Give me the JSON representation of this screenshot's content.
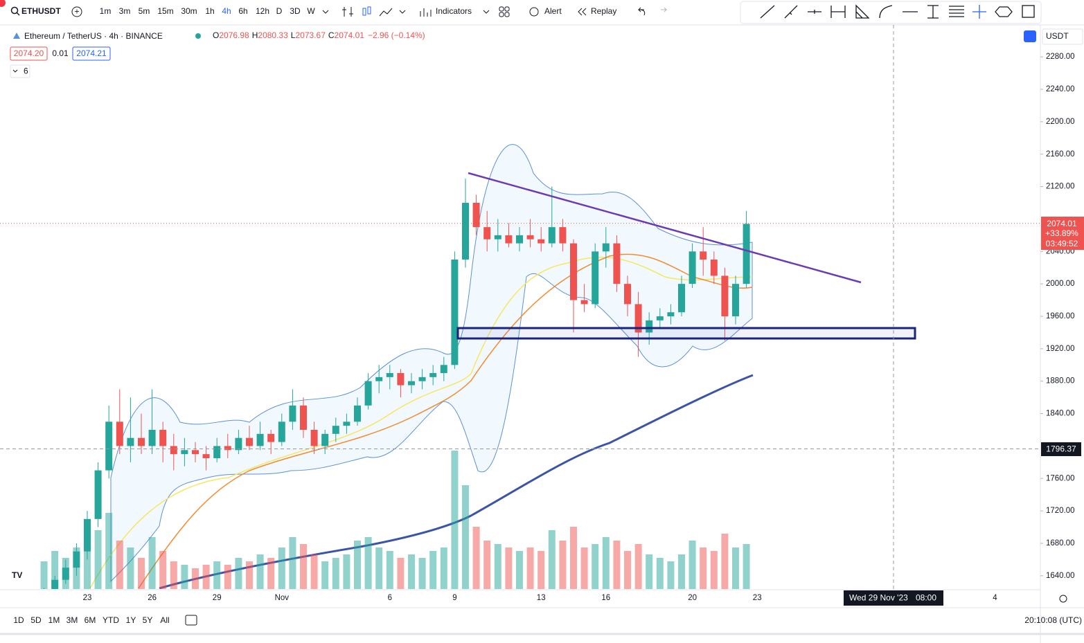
{
  "toolbar": {
    "symbol": "ETHUSDT",
    "intervals": [
      "1m",
      "3m",
      "5m",
      "15m",
      "30m",
      "1h",
      "4h",
      "6h",
      "12h",
      "D",
      "3D",
      "W"
    ],
    "indicators": "Indicators",
    "alert": "Alert",
    "replay": "Replay"
  },
  "legend": {
    "name": "Ethereum / TetherUS · 4h · BINANCE",
    "open_label": "O",
    "open": "2076.98",
    "high_label": "H",
    "high": "2080.33",
    "low_label": "L",
    "low": "2073.67",
    "close_label": "C",
    "close": "2074.01",
    "change": "−2.96 (−0.14%)",
    "bid": "2074.20",
    "spread": "0.01",
    "ask": "2074.21",
    "indicator_count": "6"
  },
  "price_axis": {
    "currency": "USDT",
    "last_price": "2074.01",
    "last_change": "+33.89%",
    "countdown": "03:49:52",
    "crosshair_price": "1796.37",
    "crosshair_date": "Wed 29 Nov '23",
    "crosshair_time": "08:00"
  },
  "chart_data": {
    "type": "candlestick",
    "categories": [
      null,
      null,
      null,
      null,
      "23",
      null,
      null,
      null,
      null,
      null,
      "26",
      null,
      null,
      null,
      null,
      null,
      "29",
      null,
      null,
      null,
      null,
      null,
      "Nov",
      null,
      null,
      null,
      null,
      null,
      null,
      null,
      null,
      null,
      "6",
      null,
      null,
      null,
      null,
      null,
      "9",
      null,
      null,
      null,
      null,
      null,
      null,
      null,
      "13",
      null,
      null,
      null,
      null,
      null,
      "16",
      null,
      null,
      null,
      null,
      null,
      null,
      null,
      "20",
      null,
      null,
      null,
      null,
      null,
      "23",
      null,
      null,
      null,
      null,
      null,
      null,
      null,
      null,
      null,
      null,
      null,
      null,
      null,
      null,
      null,
      null,
      null,
      null,
      null,
      null,
      null,
      "4"
    ],
    "open": [
      1610,
      1620,
      1635,
      1650,
      1670,
      1710,
      1770,
      1830,
      1800,
      1810,
      1800,
      1820,
      1800,
      1790,
      1795,
      1790,
      1785,
      1800,
      1795,
      1810,
      1800,
      1815,
      1805,
      1830,
      1850,
      1820,
      1800,
      1815,
      1825,
      1830,
      1850,
      1880,
      1885,
      1890,
      1875,
      1880,
      1885,
      1890,
      1900,
      2030,
      2100,
      2070,
      2055,
      2060,
      2050,
      2060,
      2055,
      2050,
      2070,
      2050,
      1980,
      1975,
      2040,
      2050,
      2000,
      1975,
      1940,
      1955,
      1960,
      1965,
      2000,
      2040,
      2030,
      2010,
      1960,
      2000,
      null,
      null,
      null,
      null,
      null,
      null,
      null,
      null,
      null,
      null,
      null,
      null,
      null,
      null,
      null,
      null,
      null,
      null,
      null,
      null,
      null,
      null,
      null
    ],
    "high": [
      1625,
      1640,
      1660,
      1680,
      1720,
      1780,
      1850,
      1870,
      1860,
      1840,
      1870,
      1830,
      1815,
      1810,
      1805,
      1800,
      1810,
      1815,
      1820,
      1825,
      1830,
      1820,
      1840,
      1870,
      1860,
      1830,
      1820,
      1835,
      1840,
      1860,
      1890,
      1900,
      1900,
      1895,
      1890,
      1895,
      1900,
      1910,
      2040,
      2130,
      2110,
      2090,
      2080,
      2075,
      2070,
      2080,
      2070,
      2120,
      2080,
      2055,
      2000,
      2050,
      2070,
      2060,
      2010,
      1990,
      1965,
      1970,
      1975,
      2010,
      2050,
      2070,
      2040,
      2020,
      2010,
      2090,
      null,
      null,
      null,
      null,
      null,
      null,
      null,
      null,
      null,
      null,
      null,
      null,
      null,
      null,
      null,
      null,
      null,
      null,
      null,
      null,
      null,
      null,
      null
    ],
    "low": [
      1600,
      1615,
      1630,
      1640,
      1660,
      1700,
      1760,
      1790,
      1780,
      1790,
      1790,
      1780,
      1770,
      1775,
      1780,
      1770,
      1780,
      1785,
      1790,
      1795,
      1795,
      1790,
      1800,
      1820,
      1810,
      1790,
      1790,
      1805,
      1815,
      1825,
      1845,
      1865,
      1870,
      1860,
      1865,
      1870,
      1875,
      1880,
      1895,
      2020,
      2060,
      2040,
      2040,
      2045,
      2040,
      2045,
      2040,
      2045,
      2040,
      1940,
      1965,
      1970,
      2020,
      1990,
      1960,
      1910,
      1925,
      1945,
      1950,
      1960,
      1995,
      2010,
      2000,
      1930,
      1950,
      1995,
      null,
      null,
      null,
      null,
      null,
      null,
      null,
      null,
      null,
      null,
      null,
      null,
      null,
      null,
      null,
      null,
      null,
      null,
      null,
      null,
      null,
      null,
      null
    ],
    "close": [
      1620,
      1635,
      1650,
      1670,
      1710,
      1770,
      1830,
      1800,
      1810,
      1800,
      1820,
      1800,
      1790,
      1795,
      1790,
      1785,
      1800,
      1795,
      1810,
      1800,
      1815,
      1805,
      1830,
      1850,
      1820,
      1800,
      1815,
      1825,
      1830,
      1850,
      1880,
      1885,
      1890,
      1875,
      1880,
      1885,
      1890,
      1900,
      2030,
      2100,
      2070,
      2055,
      2060,
      2050,
      2060,
      2055,
      2050,
      2070,
      2050,
      1980,
      1975,
      2040,
      2050,
      2000,
      1975,
      1940,
      1955,
      1960,
      1965,
      2000,
      2040,
      2030,
      2010,
      1960,
      2000,
      2074,
      null,
      null,
      null,
      null,
      null,
      null,
      null,
      null,
      null,
      null,
      null,
      null,
      null,
      null,
      null,
      null,
      null,
      null,
      null,
      null,
      null,
      null,
      null
    ],
    "volume": [
      40,
      55,
      45,
      60,
      90,
      85,
      110,
      70,
      60,
      45,
      75,
      55,
      40,
      35,
      30,
      35,
      40,
      35,
      45,
      40,
      50,
      45,
      60,
      75,
      65,
      50,
      40,
      45,
      50,
      70,
      75,
      60,
      55,
      45,
      50,
      45,
      55,
      60,
      200,
      150,
      90,
      70,
      65,
      60,
      55,
      60,
      55,
      85,
      70,
      90,
      60,
      65,
      75,
      70,
      55,
      65,
      50,
      45,
      40,
      50,
      70,
      60,
      55,
      80,
      60,
      65,
      null,
      null,
      null,
      null,
      null,
      null,
      null,
      null,
      null,
      null,
      null,
      null,
      null,
      null,
      null,
      null,
      null,
      null,
      null,
      null,
      null,
      null,
      null
    ],
    "up_color": "#26a69a",
    "down_color": "#ef5350",
    "ylim": [
      1621.6,
      2298.4
    ],
    "yticks": [
      {
        "value": 1640,
        "label": "1640.00"
      },
      {
        "value": 1680,
        "label": "1680.00"
      },
      {
        "value": 1720,
        "label": "1720.00"
      },
      {
        "value": 1760,
        "label": "1760.00"
      },
      {
        "value": 1840,
        "label": "1840.00"
      },
      {
        "value": 1880,
        "label": "1880.00"
      },
      {
        "value": 1920,
        "label": "1920.00"
      },
      {
        "value": 1960,
        "label": "1960.00"
      },
      {
        "value": 2000,
        "label": "2000.00"
      },
      {
        "value": 2040,
        "label": "2040.00"
      },
      {
        "value": 2120,
        "label": "2120.00"
      },
      {
        "value": 2160,
        "label": "2160.00"
      },
      {
        "value": 2200,
        "label": "2200.00"
      },
      {
        "value": 2240,
        "label": "2240.00"
      },
      {
        "value": 2280,
        "label": "2280.00"
      }
    ]
  },
  "bottom_bar": {
    "ranges": [
      "1D",
      "5D",
      "1M",
      "3M",
      "6M",
      "YTD",
      "1Y",
      "5Y",
      "All"
    ],
    "clock": "20:10:08 (UTC)"
  }
}
